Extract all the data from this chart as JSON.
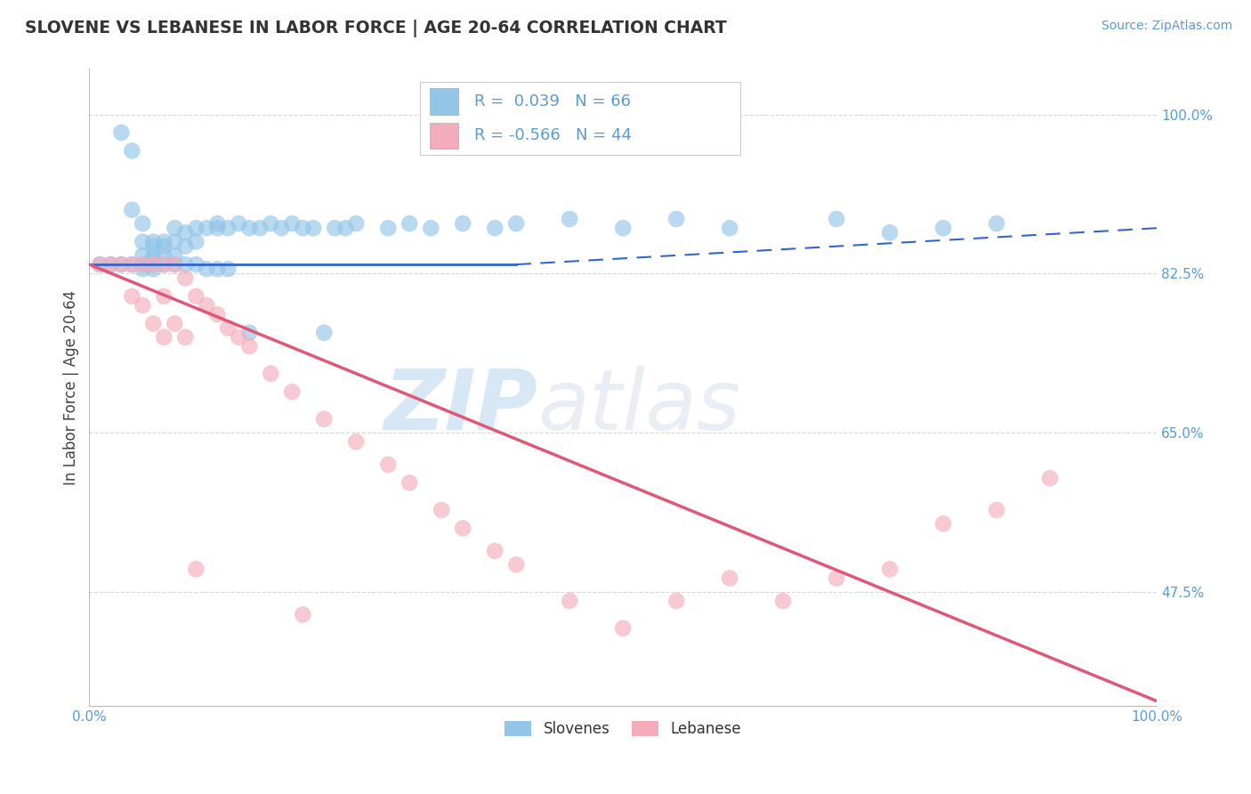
{
  "title": "SLOVENE VS LEBANESE IN LABOR FORCE | AGE 20-64 CORRELATION CHART",
  "source_text": "Source: ZipAtlas.com",
  "ylabel": "In Labor Force | Age 20-64",
  "watermark_zip": "ZIP",
  "watermark_atlas": "atlas",
  "xlim": [
    0.0,
    1.0
  ],
  "ylim": [
    0.35,
    1.05
  ],
  "x_ticks": [
    0.0,
    1.0
  ],
  "x_tick_labels": [
    "0.0%",
    "100.0%"
  ],
  "y_ticks": [
    0.475,
    0.65,
    0.825,
    1.0
  ],
  "y_tick_labels": [
    "47.5%",
    "65.0%",
    "82.5%",
    "100.0%"
  ],
  "slovene_R": 0.039,
  "slovene_N": 66,
  "lebanese_R": -0.566,
  "lebanese_N": 44,
  "slovene_color": "#92C5E8",
  "lebanese_color": "#F4ACBB",
  "slovene_line_color": "#3366CC",
  "lebanese_line_color": "#E05878",
  "background_color": "#FFFFFF",
  "grid_color": "#CCCCCC",
  "tick_color": "#5B9BD5",
  "title_color": "#333333",
  "slovene_x": [
    0.01,
    0.02,
    0.03,
    0.03,
    0.04,
    0.04,
    0.04,
    0.05,
    0.05,
    0.05,
    0.05,
    0.05,
    0.06,
    0.06,
    0.06,
    0.06,
    0.06,
    0.06,
    0.07,
    0.07,
    0.07,
    0.07,
    0.08,
    0.08,
    0.08,
    0.08,
    0.09,
    0.09,
    0.09,
    0.1,
    0.1,
    0.1,
    0.11,
    0.11,
    0.12,
    0.12,
    0.12,
    0.13,
    0.13,
    0.14,
    0.15,
    0.15,
    0.16,
    0.17,
    0.18,
    0.19,
    0.2,
    0.21,
    0.22,
    0.23,
    0.24,
    0.25,
    0.28,
    0.3,
    0.32,
    0.35,
    0.38,
    0.4,
    0.45,
    0.5,
    0.55,
    0.6,
    0.7,
    0.75,
    0.8,
    0.85
  ],
  "slovene_y": [
    0.835,
    0.835,
    0.98,
    0.835,
    0.96,
    0.895,
    0.835,
    0.88,
    0.86,
    0.845,
    0.835,
    0.83,
    0.86,
    0.855,
    0.845,
    0.84,
    0.835,
    0.83,
    0.86,
    0.855,
    0.845,
    0.835,
    0.875,
    0.86,
    0.845,
    0.835,
    0.87,
    0.855,
    0.835,
    0.875,
    0.86,
    0.835,
    0.875,
    0.83,
    0.88,
    0.875,
    0.83,
    0.875,
    0.83,
    0.88,
    0.875,
    0.76,
    0.875,
    0.88,
    0.875,
    0.88,
    0.875,
    0.875,
    0.76,
    0.875,
    0.875,
    0.88,
    0.875,
    0.88,
    0.875,
    0.88,
    0.875,
    0.88,
    0.885,
    0.875,
    0.885,
    0.875,
    0.885,
    0.87,
    0.875,
    0.88
  ],
  "lebanese_x": [
    0.01,
    0.02,
    0.03,
    0.04,
    0.04,
    0.05,
    0.05,
    0.06,
    0.06,
    0.07,
    0.07,
    0.07,
    0.08,
    0.08,
    0.09,
    0.09,
    0.1,
    0.11,
    0.12,
    0.13,
    0.14,
    0.15,
    0.17,
    0.19,
    0.22,
    0.25,
    0.28,
    0.3,
    0.33,
    0.35,
    0.38,
    0.4,
    0.45,
    0.5,
    0.55,
    0.6,
    0.65,
    0.7,
    0.75,
    0.8,
    0.85,
    0.9,
    0.1,
    0.2
  ],
  "lebanese_y": [
    0.835,
    0.835,
    0.835,
    0.835,
    0.8,
    0.835,
    0.79,
    0.835,
    0.77,
    0.835,
    0.8,
    0.755,
    0.835,
    0.77,
    0.82,
    0.755,
    0.8,
    0.79,
    0.78,
    0.765,
    0.755,
    0.745,
    0.715,
    0.695,
    0.665,
    0.64,
    0.615,
    0.595,
    0.565,
    0.545,
    0.52,
    0.505,
    0.465,
    0.435,
    0.465,
    0.49,
    0.465,
    0.49,
    0.5,
    0.55,
    0.565,
    0.6,
    0.5,
    0.45
  ],
  "slovene_line_x": [
    0.0,
    0.4,
    1.0
  ],
  "slovene_line_y": [
    0.835,
    0.835,
    0.875
  ],
  "lebanese_line_x": [
    0.0,
    1.0
  ],
  "lebanese_line_y": [
    0.835,
    0.355
  ]
}
